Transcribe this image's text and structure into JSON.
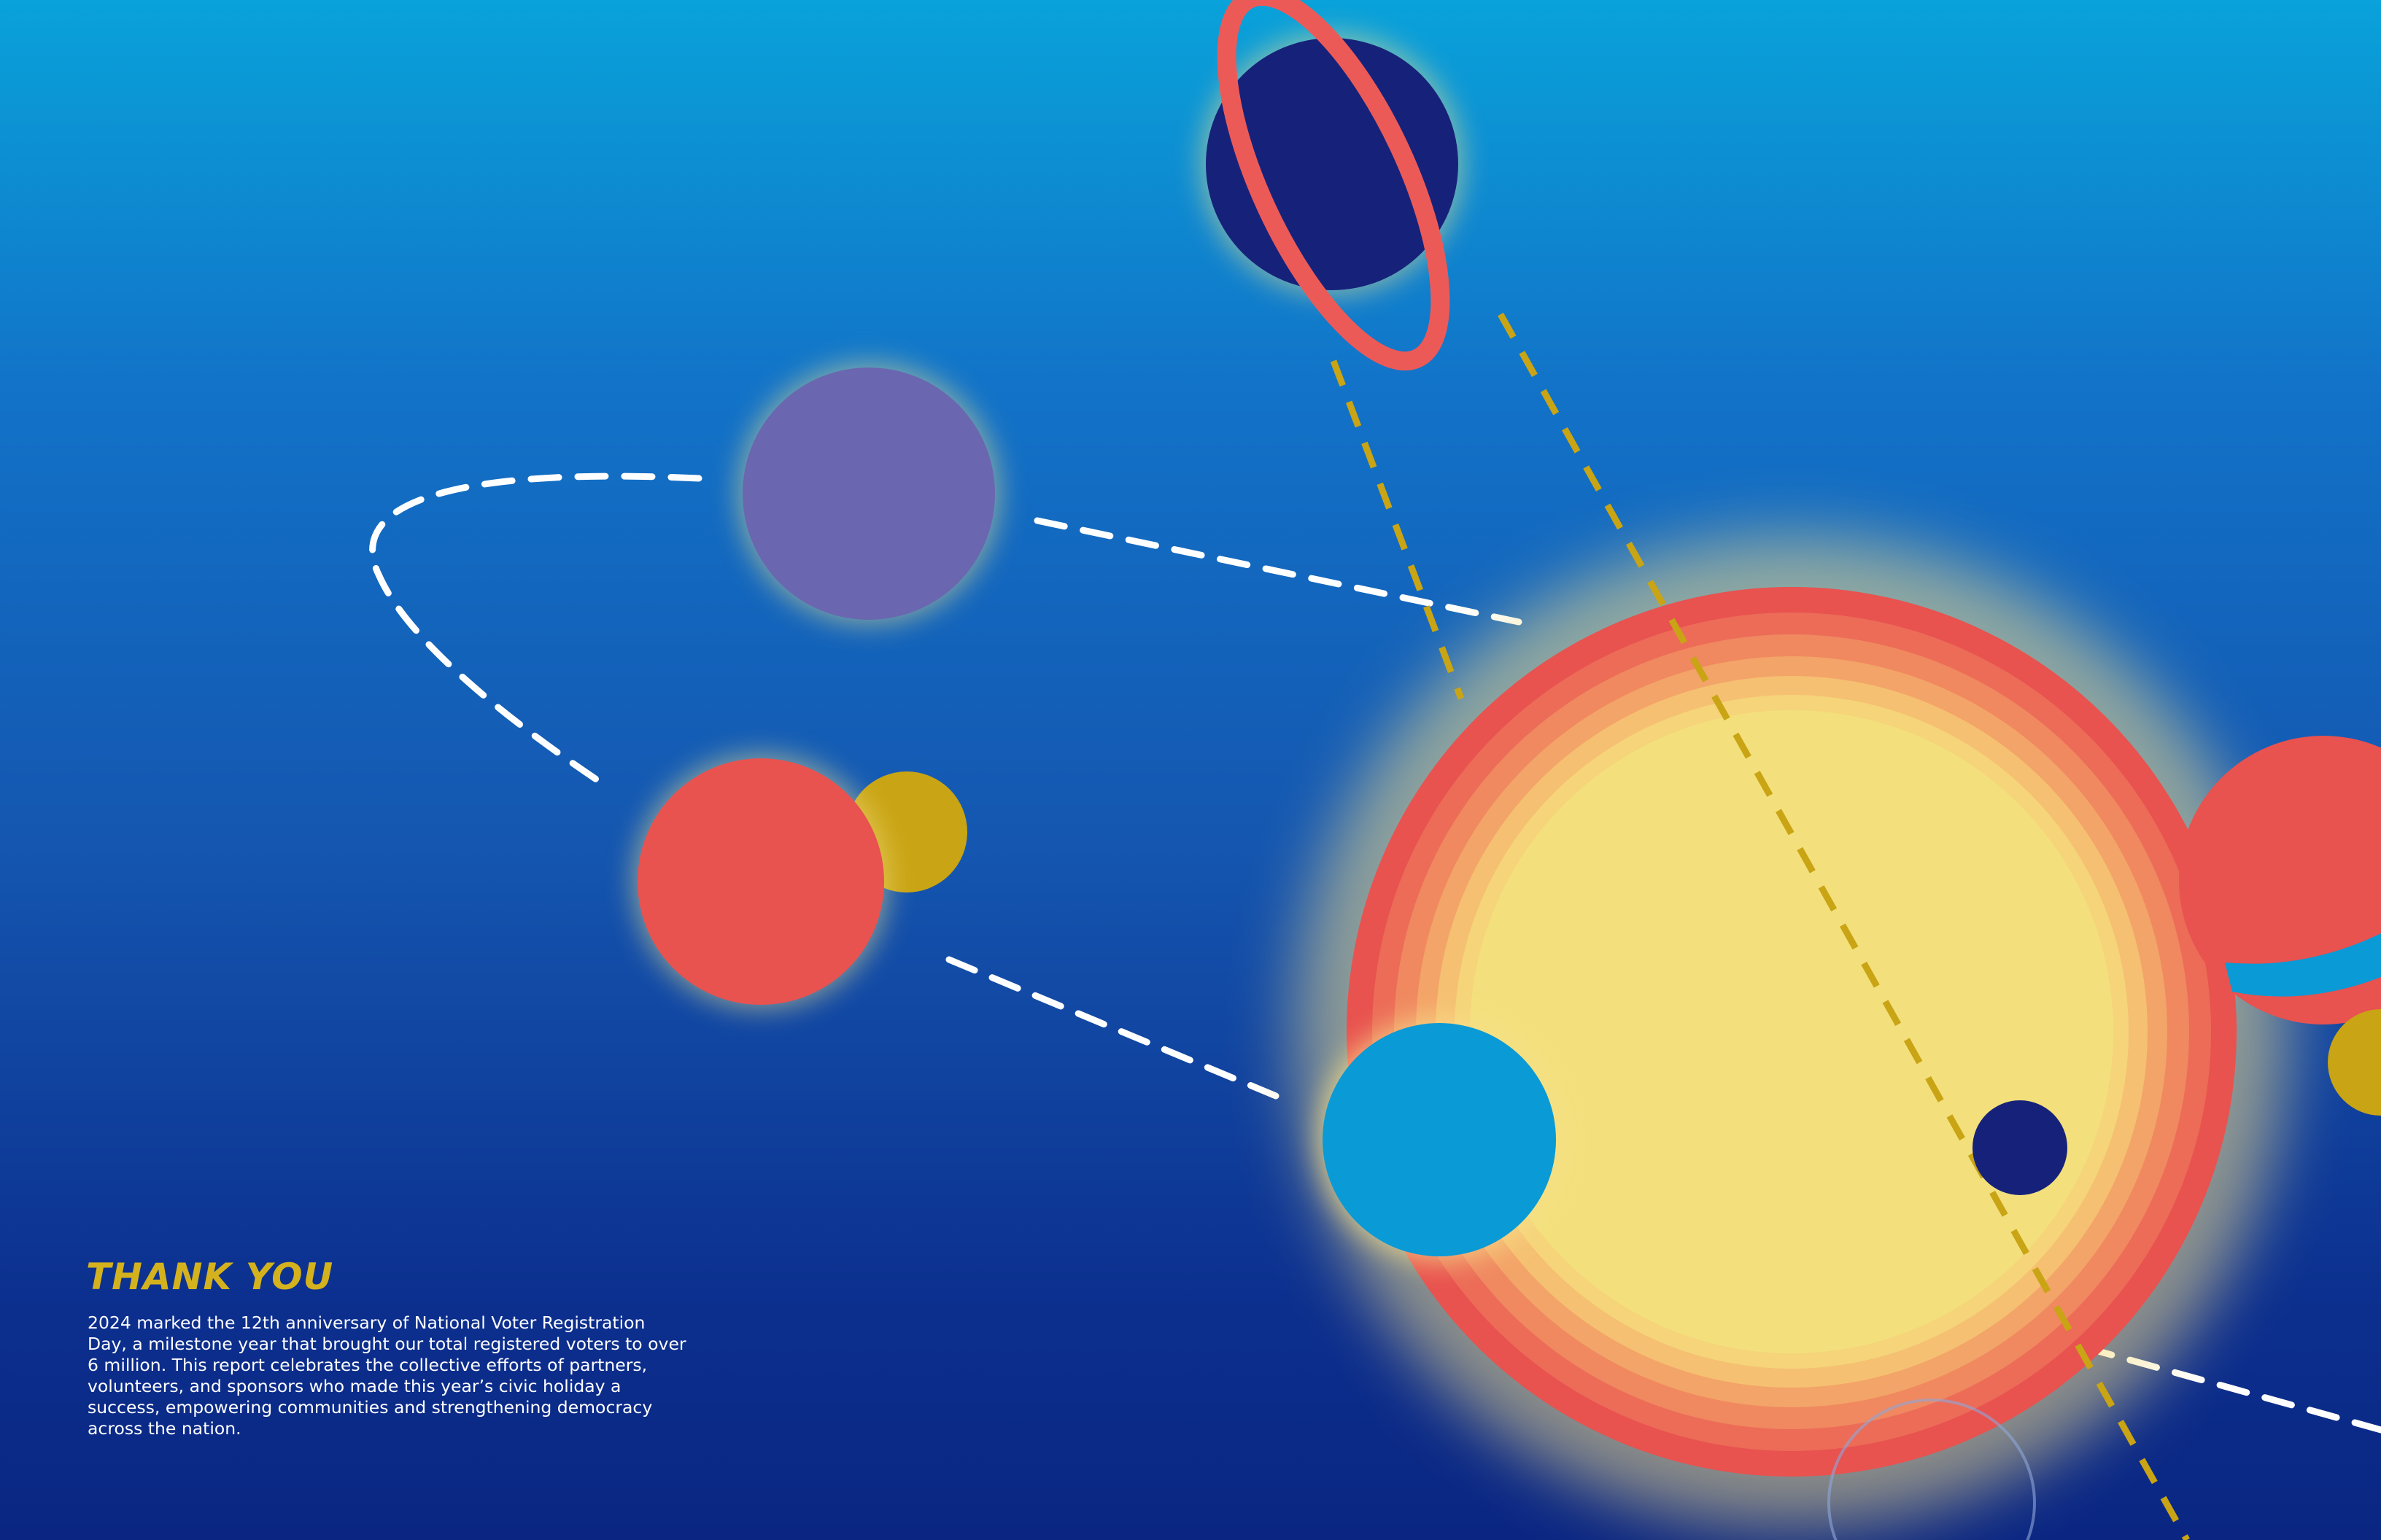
{
  "header": {
    "title": "THANK YOU"
  },
  "body": {
    "lines": [
      "2024 marked the 12th anniversary of National Voter Registration",
      "Day, a milestone year that brought our total registered voters to over",
      "6 million. This report celebrates the collective efforts of partners,",
      "volunteers, and sponsors who made this year’s civic holiday a",
      "success, empowering communities and strengthening democracy",
      "across the nation."
    ]
  }
}
